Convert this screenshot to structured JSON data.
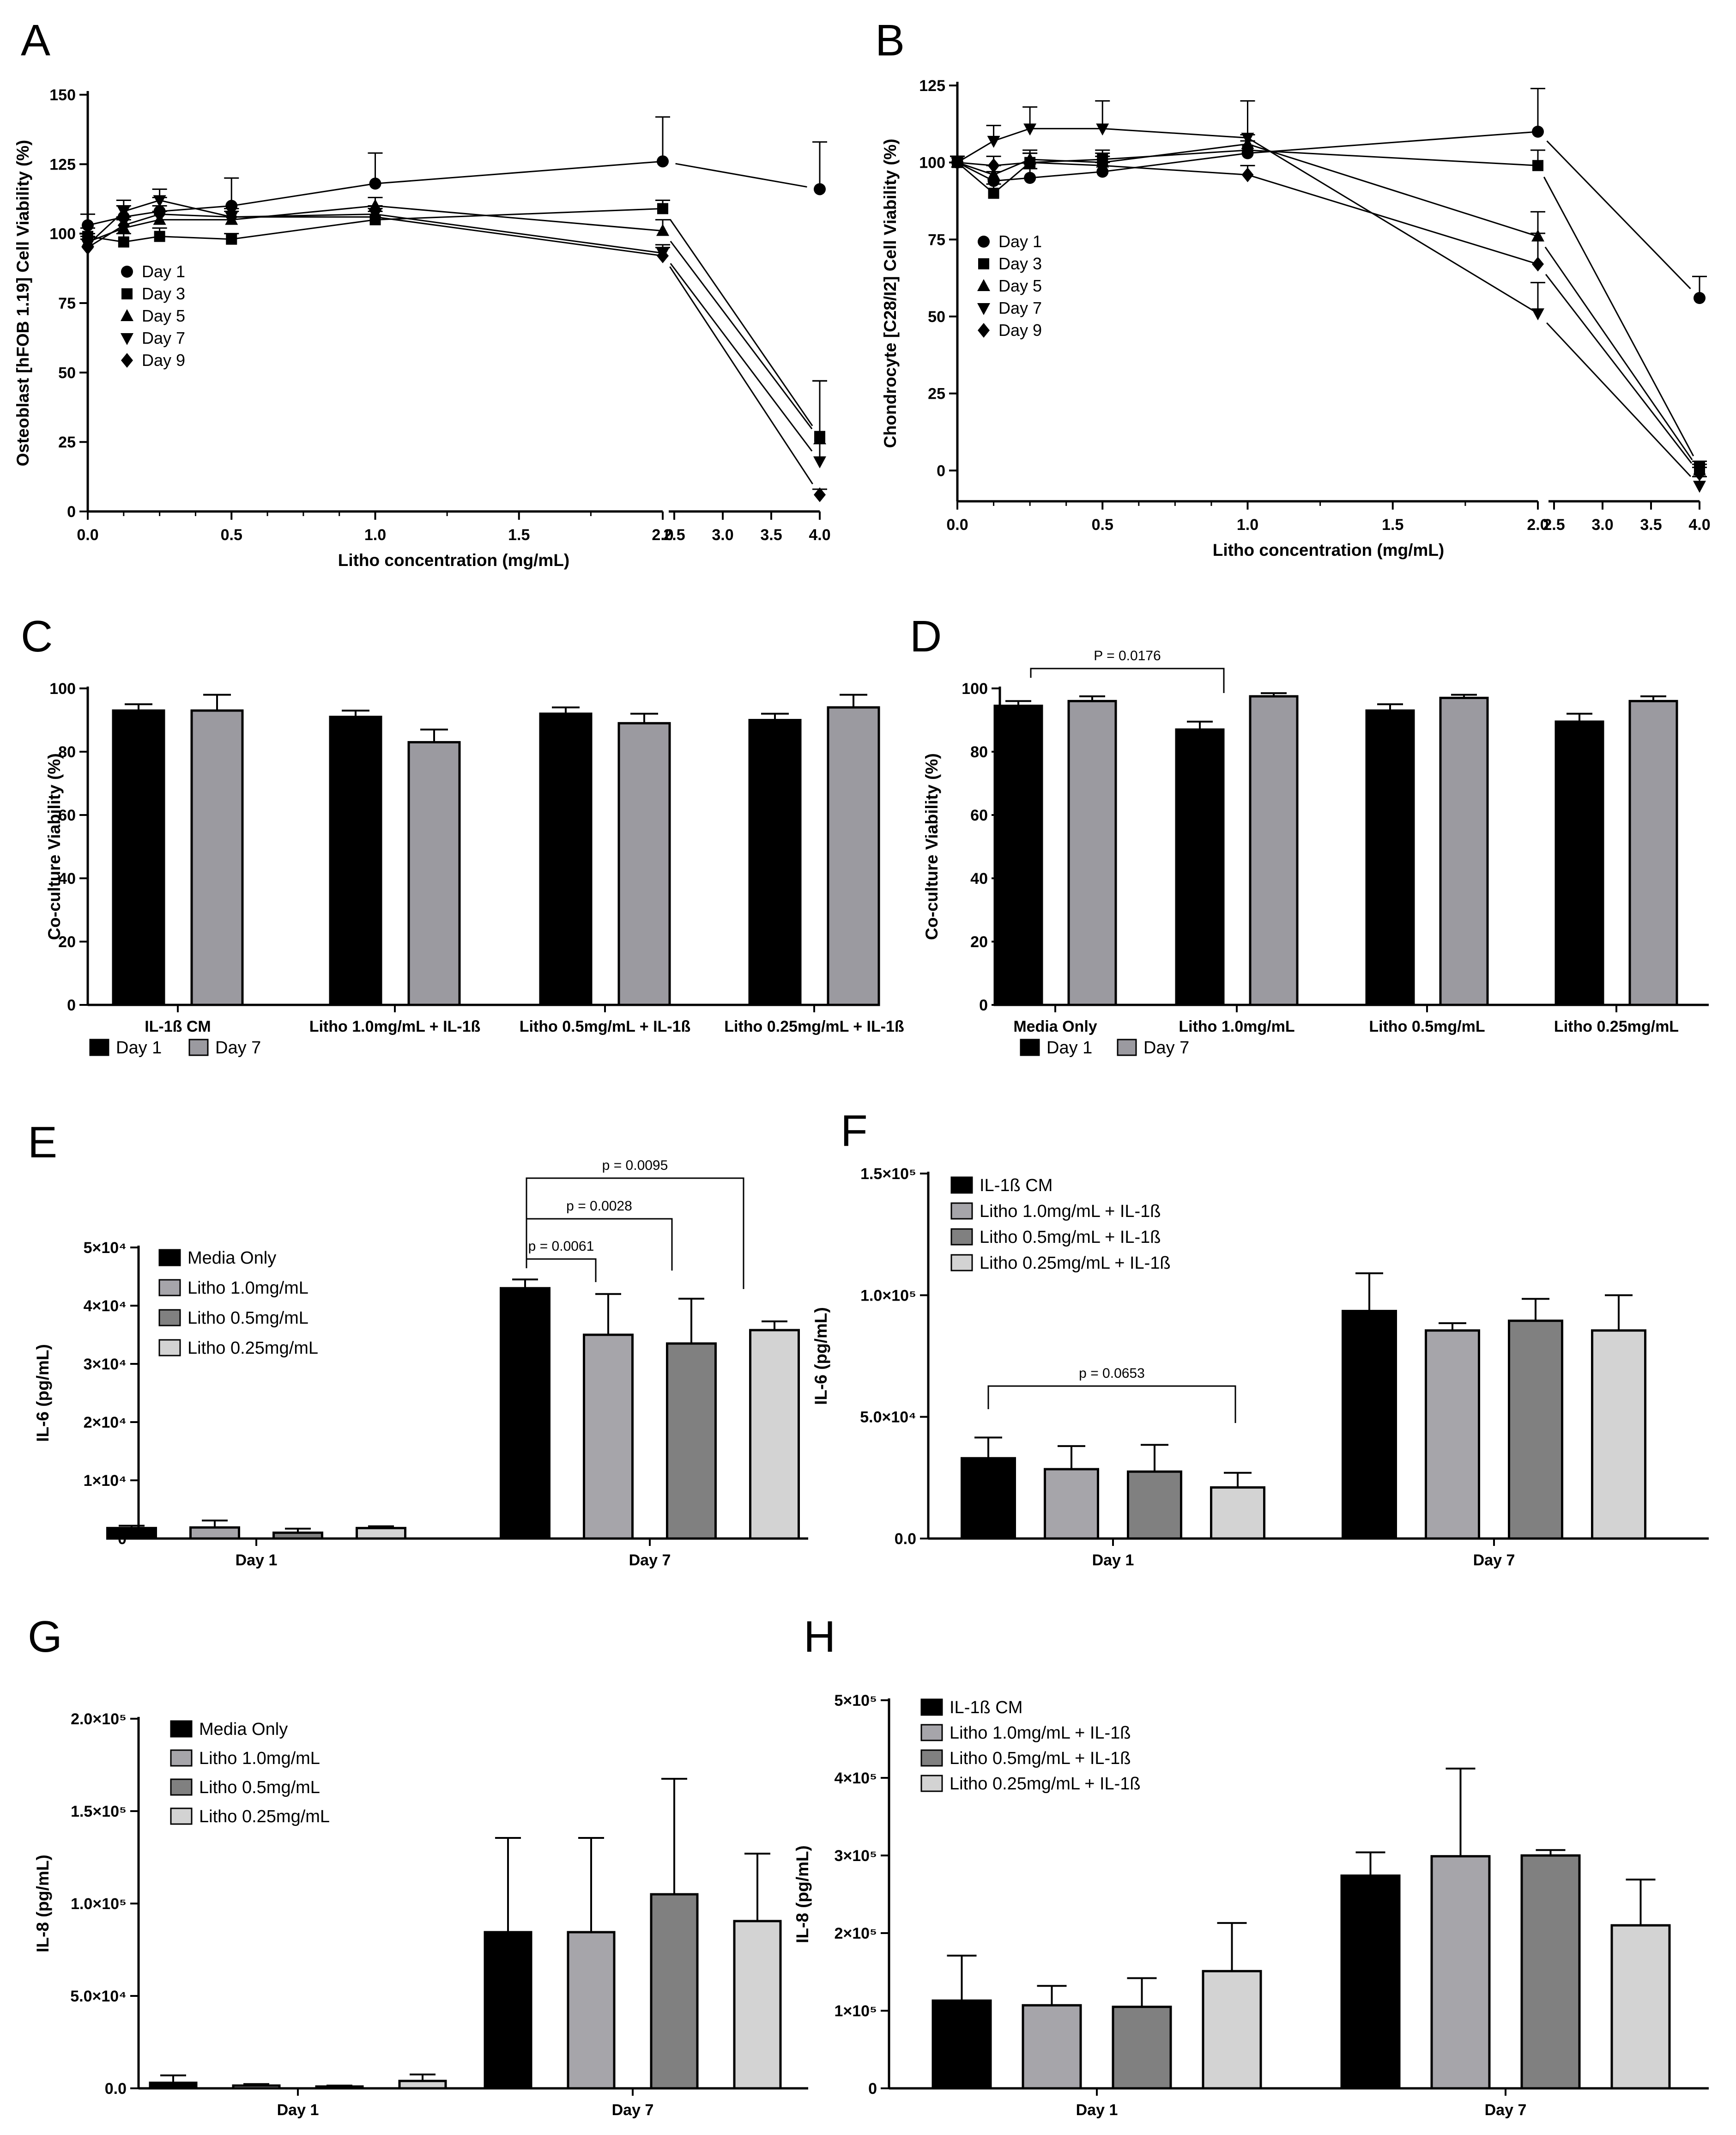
{
  "figure": {
    "panels": {
      "A": {
        "letter": "A"
      },
      "B": {
        "letter": "B"
      },
      "C": {
        "letter": "C"
      },
      "D": {
        "letter": "D"
      },
      "E": {
        "letter": "E"
      },
      "F": {
        "letter": "F"
      },
      "G": {
        "letter": "G"
      },
      "H": {
        "letter": "H"
      }
    }
  },
  "chart_data": [
    {
      "panel": "A",
      "type": "line",
      "xlabel": "Litho concentration (mg/mL)",
      "ylabel": "Osteoblast [hFOB 1.19] Cell Viability (%)",
      "x": [
        0,
        0.125,
        0.25,
        0.5,
        1.0,
        2.0,
        4.0
      ],
      "x_ticks": [
        "0.0",
        "0.5",
        "1.0",
        "1.5",
        "2.0",
        "2.5",
        "3.0",
        "3.5",
        "4.0"
      ],
      "ylim": [
        0,
        150
      ],
      "y_ticks": [
        "0",
        "25",
        "50",
        "75",
        "100",
        "125",
        "150"
      ],
      "axis_break": "between 2.0 and 2.5",
      "legend": [
        "Day 1",
        "Day 3",
        "Day 5",
        "Day 7",
        "Day 9"
      ],
      "series": [
        {
          "name": "Day 1",
          "marker": "circle",
          "values": [
            103,
            106,
            108,
            110,
            118,
            126,
            116
          ],
          "errors": [
            4,
            4,
            5,
            10,
            11,
            16,
            17
          ]
        },
        {
          "name": "Day 3",
          "marker": "square",
          "values": [
            99,
            97,
            99,
            98,
            105,
            109,
            27
          ],
          "errors": [
            3,
            3,
            3,
            2,
            3,
            3,
            20
          ]
        },
        {
          "name": "Day 5",
          "marker": "triangle-up",
          "values": [
            97,
            102,
            105,
            105,
            110,
            101,
            26
          ],
          "errors": [
            3,
            3,
            3,
            3,
            3,
            4,
            21
          ]
        },
        {
          "name": "Day 7",
          "marker": "triangle-down",
          "values": [
            96,
            108,
            112,
            106,
            107,
            93,
            18
          ],
          "errors": [
            3,
            4,
            4,
            3,
            3,
            3,
            29
          ]
        },
        {
          "name": "Day 9",
          "marker": "diamond",
          "values": [
            95,
            103,
            107,
            106,
            106,
            92,
            6
          ],
          "errors": [
            3,
            3,
            3,
            3,
            3,
            3,
            2
          ]
        }
      ]
    },
    {
      "panel": "B",
      "type": "line",
      "xlabel": "Litho concentration (mg/mL)",
      "ylabel": "Chondrocyte [C28/I2] Cell Viability (%)",
      "x": [
        0,
        0.125,
        0.25,
        0.5,
        1.0,
        2.0,
        4.0
      ],
      "x_ticks": [
        "0.0",
        "0.5",
        "1.0",
        "1.5",
        "2.0",
        "2.5",
        "3.0",
        "3.5",
        "4.0"
      ],
      "ylim": [
        -10,
        125
      ],
      "y_ticks": [
        "0",
        "25",
        "50",
        "75",
        "100",
        "125"
      ],
      "axis_break": "between 2.0 and 2.5",
      "legend": [
        "Day 1",
        "Day 3",
        "Day 5",
        "Day 7",
        "Day 9"
      ],
      "series": [
        {
          "name": "Day 1",
          "marker": "circle",
          "values": [
            100,
            94,
            95,
            97,
            103,
            110,
            56
          ],
          "errors": [
            2,
            3,
            3,
            3,
            4,
            14,
            7
          ]
        },
        {
          "name": "Day 3",
          "marker": "square",
          "values": [
            100,
            90,
            100,
            101,
            104,
            99,
            1
          ],
          "errors": [
            2,
            3,
            3,
            3,
            3,
            5,
            2
          ]
        },
        {
          "name": "Day 5",
          "marker": "triangle-up",
          "values": [
            100,
            96,
            101,
            100,
            106,
            76,
            0
          ],
          "errors": [
            2,
            3,
            3,
            3,
            3,
            8,
            2
          ]
        },
        {
          "name": "Day 7",
          "marker": "triangle-down",
          "values": [
            100,
            107,
            111,
            111,
            108,
            51,
            -5
          ],
          "errors": [
            2,
            5,
            7,
            9,
            12,
            10,
            3
          ]
        },
        {
          "name": "Day 9",
          "marker": "diamond",
          "values": [
            100,
            99,
            100,
            99,
            96,
            67,
            -1
          ],
          "errors": [
            2,
            3,
            3,
            3,
            3,
            10,
            2
          ]
        }
      ]
    },
    {
      "panel": "C",
      "type": "bar",
      "ylabel": "Co-culture Viability (%)",
      "categories": [
        "IL-1ß CM",
        "Litho 1.0mg/mL + IL-1ß",
        "Litho 0.5mg/mL + IL-1ß",
        "Litho 0.25mg/mL + IL-1ß"
      ],
      "ylim": [
        0,
        100
      ],
      "y_ticks": [
        "0",
        "20",
        "40",
        "60",
        "80",
        "100"
      ],
      "legend": [
        "Day 1",
        "Day 7"
      ],
      "series": [
        {
          "name": "Day 1",
          "color": "#000000",
          "values": [
            93,
            91,
            92,
            90
          ],
          "errors": [
            2,
            2,
            2,
            2
          ]
        },
        {
          "name": "Day 7",
          "color": "#9b9aa0",
          "values": [
            93,
            83,
            89,
            94
          ],
          "errors": [
            5,
            4,
            3,
            4
          ]
        }
      ]
    },
    {
      "panel": "D",
      "type": "bar",
      "ylabel": "Co-culture Viability (%)",
      "categories": [
        "Media Only",
        "Litho 1.0mg/mL",
        "Litho 0.5mg/mL",
        "Litho 0.25mg/mL"
      ],
      "ylim": [
        0,
        100
      ],
      "y_ticks": [
        "0",
        "20",
        "40",
        "60",
        "80",
        "100"
      ],
      "legend": [
        "Day 1",
        "Day 7"
      ],
      "annotations": [
        {
          "text": "P = 0.0176",
          "from": "Media Only / Day 1",
          "to": "Litho 1.0mg/mL / Day 1"
        }
      ],
      "series": [
        {
          "name": "Day 1",
          "color": "#000000",
          "values": [
            94.5,
            87,
            93,
            89.5
          ],
          "errors": [
            1.5,
            2.5,
            2,
            2.5
          ]
        },
        {
          "name": "Day 7",
          "color": "#9b9aa0",
          "values": [
            96,
            97.5,
            97,
            96
          ],
          "errors": [
            1.5,
            1,
            1,
            1.5
          ]
        }
      ]
    },
    {
      "panel": "E",
      "type": "bar",
      "ylabel": "IL-6 (pg/mL)",
      "categories": [
        "Day 1",
        "Day 7"
      ],
      "ylim": [
        0,
        50000
      ],
      "y_ticks": [
        "0",
        "1×10⁴",
        "2×10⁴",
        "3×10⁴",
        "4×10⁴",
        "5×10⁴"
      ],
      "legend": [
        "Media Only",
        "Litho 1.0mg/mL",
        "Litho 0.5mg/mL",
        "Litho 0.25mg/mL"
      ],
      "annotations": [
        {
          "text": "p = 0.0061",
          "from": "Media Only / Day 7",
          "to": "Litho 1.0mg/mL / Day 7"
        },
        {
          "text": "p = 0.0028",
          "from": "Media Only / Day 7",
          "to": "Litho 0.5mg/mL / Day 7"
        },
        {
          "text": "p = 0.0095",
          "from": "Media Only / Day 7",
          "to": "Litho 0.25mg/mL / Day 7"
        }
      ],
      "series": [
        {
          "name": "Media Only",
          "color": "#000000",
          "values": [
            1800,
            43000
          ],
          "errors": [
            400,
            1500
          ]
        },
        {
          "name": "Litho 1.0mg/mL",
          "color": "#a6a5aa",
          "values": [
            1900,
            35000
          ],
          "errors": [
            1200,
            7000
          ]
        },
        {
          "name": "Litho 0.5mg/mL",
          "color": "#808080",
          "values": [
            1000,
            33500
          ],
          "errors": [
            700,
            7700
          ]
        },
        {
          "name": "Litho 0.25mg/mL",
          "color": "#d3d3d3",
          "values": [
            1800,
            35800
          ],
          "errors": [
            300,
            1500
          ]
        }
      ]
    },
    {
      "panel": "F",
      "type": "bar",
      "ylabel": "IL-6 (pg/mL)",
      "categories": [
        "Day 1",
        "Day 7"
      ],
      "ylim": [
        0,
        150000
      ],
      "y_ticks": [
        "0.0",
        "5.0×10⁴",
        "1.0×10⁵",
        "1.5×10⁵"
      ],
      "legend": [
        "IL-1ß CM",
        "Litho 1.0mg/mL + IL-1ß",
        "Litho 0.5mg/mL + IL-1ß",
        "Litho 0.25mg/mL + IL-1ß"
      ],
      "annotations": [
        {
          "text": "p = 0.0653",
          "from": "IL-1ß CM / Day 1",
          "to": "Litho 0.25mg/mL + IL-1ß / Day 1"
        }
      ],
      "series": [
        {
          "name": "IL-1ß CM",
          "color": "#000000",
          "values": [
            33000,
            93500
          ],
          "errors": [
            8500,
            15500
          ]
        },
        {
          "name": "Litho 1.0mg/mL + IL-1ß",
          "color": "#a6a5aa",
          "values": [
            28500,
            85500
          ],
          "errors": [
            9500,
            3000
          ]
        },
        {
          "name": "Litho 0.5mg/mL + IL-1ß",
          "color": "#808080",
          "values": [
            27500,
            89500
          ],
          "errors": [
            11000,
            9000
          ]
        },
        {
          "name": "Litho 0.25mg/mL + IL-1ß",
          "color": "#d3d3d3",
          "values": [
            21000,
            85500
          ],
          "errors": [
            6000,
            14500
          ]
        }
      ]
    },
    {
      "panel": "G",
      "type": "bar",
      "ylabel": "IL-8 (pg/mL)",
      "categories": [
        "Day 1",
        "Day 7"
      ],
      "ylim": [
        0,
        200000
      ],
      "y_ticks": [
        "0.0",
        "5.0×10⁴",
        "1.0×10⁵",
        "1.5×10⁵",
        "2.0×10⁵"
      ],
      "legend": [
        "Media Only",
        "Litho 1.0mg/mL",
        "Litho 0.5mg/mL",
        "Litho 0.25mg/mL"
      ],
      "series": [
        {
          "name": "Media Only",
          "color": "#000000",
          "values": [
            3000,
            84500
          ],
          "errors": [
            4000,
            51000
          ]
        },
        {
          "name": "Litho 1.0mg/mL",
          "color": "#a6a5aa",
          "values": [
            1500,
            84500
          ],
          "errors": [
            800,
            51000
          ]
        },
        {
          "name": "Litho 0.5mg/mL",
          "color": "#808080",
          "values": [
            1000,
            105000
          ],
          "errors": [
            500,
            62500
          ]
        },
        {
          "name": "Litho 0.25mg/mL",
          "color": "#d3d3d3",
          "values": [
            4000,
            90500
          ],
          "errors": [
            3500,
            36500
          ]
        }
      ]
    },
    {
      "panel": "H",
      "type": "bar",
      "ylabel": "IL-8 (pg/mL)",
      "categories": [
        "Day 1",
        "Day 7"
      ],
      "ylim": [
        0,
        500000
      ],
      "y_ticks": [
        "0",
        "1×10⁵",
        "2×10⁵",
        "3×10⁵",
        "4×10⁵",
        "5×10⁵"
      ],
      "legend": [
        "IL-1ß CM",
        "Litho 1.0mg/mL + IL-1ß",
        "Litho 0.5mg/mL + IL-1ß",
        "Litho 0.25mg/mL + IL-1ß"
      ],
      "series": [
        {
          "name": "IL-1ß CM",
          "color": "#000000",
          "values": [
            113000,
            274000
          ],
          "errors": [
            58000,
            30000
          ]
        },
        {
          "name": "Litho 1.0mg/mL + IL-1ß",
          "color": "#a6a5aa",
          "values": [
            107000,
            299000
          ],
          "errors": [
            25000,
            113000
          ]
        },
        {
          "name": "Litho 0.5mg/mL + IL-1ß",
          "color": "#808080",
          "values": [
            105000,
            300000
          ],
          "errors": [
            37000,
            7000
          ]
        },
        {
          "name": "Litho 0.25mg/mL + IL-1ß",
          "color": "#d3d3d3",
          "values": [
            151000,
            210000
          ],
          "errors": [
            62000,
            59000
          ]
        }
      ]
    }
  ]
}
